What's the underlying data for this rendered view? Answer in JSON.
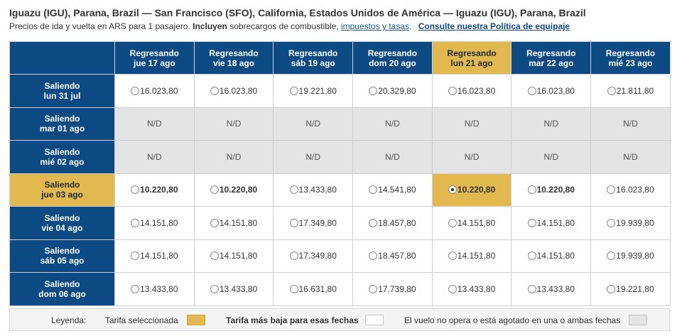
{
  "header": {
    "route": "Iguazu (IGU), Parana, Brazil — San Francisco (SFO), California, Estados Unidos de América — Iguazu (IGU), Parana, Brazil",
    "subtitle_prefix": "Precios de ida y vuelta en ARS para 1 pasajero.",
    "subtitle_bold": "Incluyen",
    "subtitle_mid": "sobrecargos de combustible,",
    "taxes_link": "impuestos y tasas",
    "subtitle_dot": ".",
    "baggage_link": "Consulte nuestra Política de equipaje"
  },
  "grid": {
    "return_prefix": "Regresando",
    "depart_prefix": "Saliendo",
    "not_available": "N/D",
    "columns": [
      {
        "label": "Regresando",
        "date": "jue 17 ago"
      },
      {
        "label": "Regresando",
        "date": "vie 18 ago"
      },
      {
        "label": "Regresando",
        "date": "sáb 19 ago"
      },
      {
        "label": "Regresando",
        "date": "dom 20 ago"
      },
      {
        "label": "Regresando",
        "date": "lun 21 ago"
      },
      {
        "label": "Regresando",
        "date": "mar 22 ago"
      },
      {
        "label": "Regresando",
        "date": "mié 23 ago"
      }
    ],
    "rows": [
      {
        "label": "Saliendo",
        "date": "lun 31 jul",
        "prices": [
          "16.023,80",
          "16.023,80",
          "19.221,80",
          "20.329,80",
          "16.023,80",
          "16.023,80",
          "21.811,80"
        ]
      },
      {
        "label": "Saliendo",
        "date": "mar 01 ago",
        "prices": [
          "N/D",
          "N/D",
          "N/D",
          "N/D",
          "N/D",
          "N/D",
          "N/D"
        ]
      },
      {
        "label": "Saliendo",
        "date": "mié 02 ago",
        "prices": [
          "N/D",
          "N/D",
          "N/D",
          "N/D",
          "N/D",
          "N/D",
          "N/D"
        ]
      },
      {
        "label": "Saliendo",
        "date": "jue 03 ago",
        "prices": [
          "10.220,80",
          "10.220,80",
          "13.433,80",
          "14.541,80",
          "10.220,80",
          "10.220,80",
          "16.023,80"
        ]
      },
      {
        "label": "Saliendo",
        "date": "vie 04 ago",
        "prices": [
          "14.151,80",
          "14.151,80",
          "17.349,80",
          "18.457,80",
          "14.151,80",
          "14.151,80",
          "19.939,80"
        ]
      },
      {
        "label": "Saliendo",
        "date": "sáb 05 ago",
        "prices": [
          "14.151,80",
          "14.151,80",
          "17.349,80",
          "18.457,80",
          "14.151,80",
          "14.151,80",
          "19.939,80"
        ]
      },
      {
        "label": "Saliendo",
        "date": "dom 06 ago",
        "prices": [
          "13.433,80",
          "13.433,80",
          "16.631,80",
          "17.739,80",
          "13.433,80",
          "13.433,80",
          "19.221,80"
        ]
      }
    ],
    "selected_row": 3,
    "selected_col": 4,
    "lowest_price": "10.220,80"
  },
  "legend": {
    "title": "Leyenda:",
    "selected": "Tarifa seleccionada",
    "lowest": "Tarifa más baja para esas fechas",
    "unavailable": "El vuelo no opera o está agotado en una o ambas fechas"
  },
  "colors": {
    "header_blue": "#0c4a84",
    "selected_gold": "#e2b94f",
    "unavailable_gray": "#e4e4e4",
    "link_blue": "#1a5a96"
  }
}
